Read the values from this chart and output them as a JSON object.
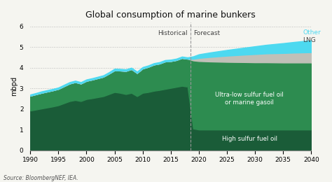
{
  "title": "Global consumption of marine bunkers",
  "ylabel": "mbpd",
  "source": "Source: BloombergNEF, IEA.",
  "ylim": [
    0,
    6.2
  ],
  "xlim": [
    1990,
    2040
  ],
  "forecast_year": 2018.5,
  "historical_label": "Historical",
  "forecast_label": "Forecast",
  "colors": {
    "high_sulfur": "#1a5c38",
    "ultra_low": "#2d8c50",
    "lng": "#c0c0b8",
    "other": "#4dd9f0"
  },
  "label_colors": {
    "other_text": "#4dd9f0",
    "lng_text": "#444444",
    "ultra_low_text": "#ffffff",
    "high_sulfur_text": "#ffffff"
  },
  "years_hist": [
    1990,
    1991,
    1992,
    1993,
    1994,
    1995,
    1996,
    1997,
    1998,
    1999,
    2000,
    2001,
    2002,
    2003,
    2004,
    2005,
    2006,
    2007,
    2008,
    2009,
    2010,
    2011,
    2012,
    2013,
    2014,
    2015,
    2016,
    2017,
    2018
  ],
  "high_sulfur_hist": [
    1.92,
    1.97,
    2.02,
    2.07,
    2.12,
    2.18,
    2.28,
    2.38,
    2.43,
    2.38,
    2.48,
    2.52,
    2.57,
    2.62,
    2.72,
    2.82,
    2.78,
    2.72,
    2.78,
    2.62,
    2.78,
    2.82,
    2.88,
    2.92,
    2.97,
    3.02,
    3.07,
    3.12,
    3.08
  ],
  "ultra_low_hist": [
    0.72,
    0.74,
    0.76,
    0.77,
    0.78,
    0.79,
    0.82,
    0.85,
    0.87,
    0.85,
    0.88,
    0.9,
    0.92,
    0.94,
    0.99,
    1.05,
    1.08,
    1.12,
    1.15,
    1.12,
    1.18,
    1.22,
    1.27,
    1.28,
    1.33,
    1.3,
    1.3,
    1.35,
    1.35
  ],
  "lng_hist": [
    0.0,
    0.0,
    0.0,
    0.0,
    0.0,
    0.0,
    0.0,
    0.0,
    0.0,
    0.0,
    0.0,
    0.0,
    0.0,
    0.0,
    0.0,
    0.0,
    0.0,
    0.0,
    0.0,
    0.0,
    0.0,
    0.0,
    0.0,
    0.0,
    0.0,
    0.0,
    0.0,
    0.0,
    0.0
  ],
  "other_hist": [
    0.06,
    0.06,
    0.07,
    0.07,
    0.07,
    0.07,
    0.07,
    0.07,
    0.07,
    0.07,
    0.07,
    0.07,
    0.07,
    0.07,
    0.07,
    0.08,
    0.08,
    0.08,
    0.07,
    0.07,
    0.07,
    0.07,
    0.07,
    0.07,
    0.07,
    0.07,
    0.07,
    0.07,
    0.07
  ],
  "years_fore": [
    2018,
    2019,
    2020,
    2022,
    2025,
    2028,
    2030,
    2032,
    2035,
    2037,
    2040
  ],
  "high_sulfur_fore": [
    3.08,
    1.05,
    1.0,
    1.0,
    1.0,
    1.0,
    1.0,
    1.0,
    1.0,
    1.0,
    1.0
  ],
  "ultra_low_fore": [
    1.35,
    3.3,
    3.32,
    3.3,
    3.28,
    3.27,
    3.26,
    3.26,
    3.25,
    3.25,
    3.25
  ],
  "lng_fore": [
    0.0,
    0.08,
    0.15,
    0.22,
    0.3,
    0.36,
    0.4,
    0.43,
    0.46,
    0.48,
    0.5
  ],
  "other_fore": [
    0.07,
    0.12,
    0.18,
    0.22,
    0.28,
    0.34,
    0.38,
    0.42,
    0.48,
    0.52,
    0.58
  ],
  "background_color": "#f5f5f0",
  "grid_color": "#bbbbbb",
  "xticks": [
    1990,
    1995,
    2000,
    2005,
    2010,
    2015,
    2020,
    2025,
    2030,
    2035,
    2040
  ],
  "yticks": [
    0,
    1,
    2,
    3,
    4,
    5,
    6
  ]
}
